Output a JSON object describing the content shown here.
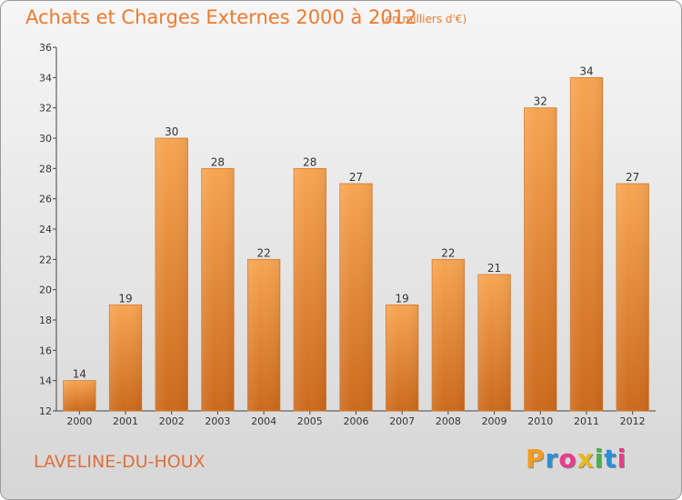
{
  "title": "Achats et Charges Externes 2000 à 2012",
  "subtitle": "(en milliers d'€)",
  "commune": "LAVELINE-DU-HOUX",
  "logo": {
    "letters": [
      "P",
      "r",
      "o",
      "x",
      "i",
      "t",
      "i"
    ],
    "colors": [
      "#f39c1f",
      "#2b8fd6",
      "#e93b8c",
      "#e8b81f",
      "#47b14b",
      "#2b8fd6",
      "#e93b8c"
    ]
  },
  "colors": {
    "bar": "#f09a43",
    "title": "#ef7a2e"
  },
  "chart_data": {
    "type": "bar",
    "title": "Achats et Charges Externes 2000 à 2012",
    "subtitle": "(en milliers d'€)",
    "categories": [
      "2000",
      "2001",
      "2002",
      "2003",
      "2004",
      "2005",
      "2006",
      "2007",
      "2008",
      "2009",
      "2010",
      "2011",
      "2012"
    ],
    "values": [
      14,
      19,
      30,
      28,
      22,
      28,
      27,
      19,
      22,
      21,
      32,
      34,
      27
    ],
    "ylim": [
      12,
      36
    ],
    "yticks": [
      12,
      14,
      16,
      18,
      20,
      22,
      24,
      26,
      28,
      30,
      32,
      34,
      36
    ],
    "xlabel": "",
    "ylabel": "",
    "grid": false,
    "legend": "none"
  }
}
